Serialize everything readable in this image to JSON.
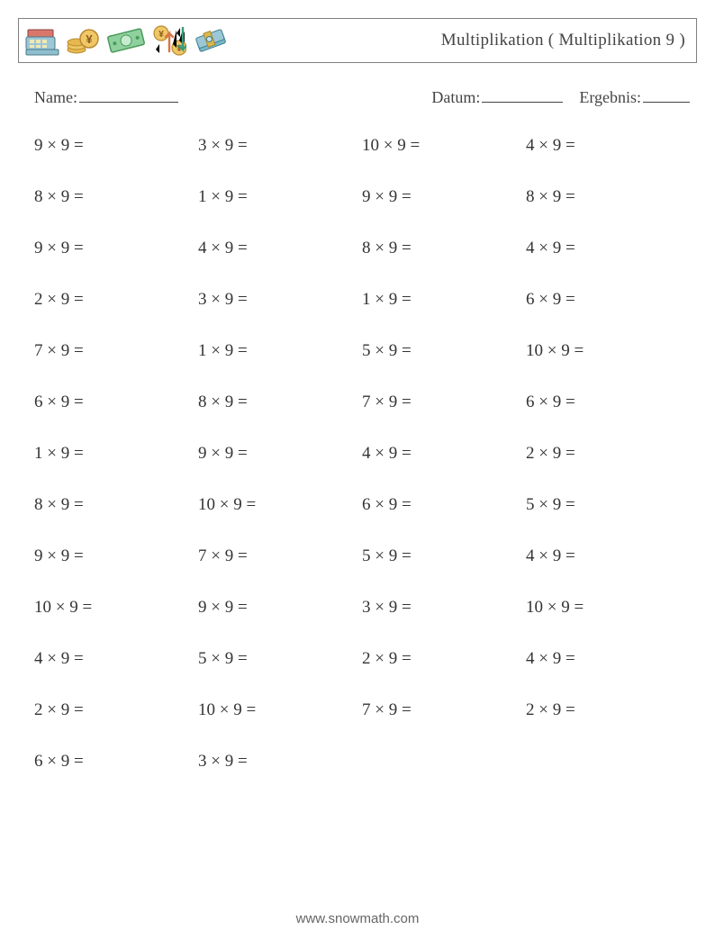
{
  "title": "Multiplikation ( Multiplikation 9 )",
  "meta": {
    "name_label": "Name:",
    "date_label": "Datum:",
    "result_label": "Ergebnis:"
  },
  "layout": {
    "columns": 4,
    "rows": 13,
    "operator": "×",
    "suffix": " ="
  },
  "colors": {
    "text": "#333333",
    "border": "#808080",
    "background": "#ffffff",
    "footer": "#666666"
  },
  "problems": [
    {
      "a": 9,
      "b": 9
    },
    {
      "a": 3,
      "b": 9
    },
    {
      "a": 10,
      "b": 9
    },
    {
      "a": 4,
      "b": 9
    },
    {
      "a": 8,
      "b": 9
    },
    {
      "a": 1,
      "b": 9
    },
    {
      "a": 9,
      "b": 9
    },
    {
      "a": 8,
      "b": 9
    },
    {
      "a": 9,
      "b": 9
    },
    {
      "a": 4,
      "b": 9
    },
    {
      "a": 8,
      "b": 9
    },
    {
      "a": 4,
      "b": 9
    },
    {
      "a": 2,
      "b": 9
    },
    {
      "a": 3,
      "b": 9
    },
    {
      "a": 1,
      "b": 9
    },
    {
      "a": 6,
      "b": 9
    },
    {
      "a": 7,
      "b": 9
    },
    {
      "a": 1,
      "b": 9
    },
    {
      "a": 5,
      "b": 9
    },
    {
      "a": 10,
      "b": 9
    },
    {
      "a": 6,
      "b": 9
    },
    {
      "a": 8,
      "b": 9
    },
    {
      "a": 7,
      "b": 9
    },
    {
      "a": 6,
      "b": 9
    },
    {
      "a": 1,
      "b": 9
    },
    {
      "a": 9,
      "b": 9
    },
    {
      "a": 4,
      "b": 9
    },
    {
      "a": 2,
      "b": 9
    },
    {
      "a": 8,
      "b": 9
    },
    {
      "a": 10,
      "b": 9
    },
    {
      "a": 6,
      "b": 9
    },
    {
      "a": 5,
      "b": 9
    },
    {
      "a": 9,
      "b": 9
    },
    {
      "a": 7,
      "b": 9
    },
    {
      "a": 5,
      "b": 9
    },
    {
      "a": 4,
      "b": 9
    },
    {
      "a": 10,
      "b": 9
    },
    {
      "a": 9,
      "b": 9
    },
    {
      "a": 3,
      "b": 9
    },
    {
      "a": 10,
      "b": 9
    },
    {
      "a": 4,
      "b": 9
    },
    {
      "a": 5,
      "b": 9
    },
    {
      "a": 2,
      "b": 9
    },
    {
      "a": 4,
      "b": 9
    },
    {
      "a": 2,
      "b": 9
    },
    {
      "a": 10,
      "b": 9
    },
    {
      "a": 7,
      "b": 9
    },
    {
      "a": 2,
      "b": 9
    },
    {
      "a": 6,
      "b": 9
    },
    {
      "a": 3,
      "b": 9
    }
  ],
  "footer": "www.snowmath.com"
}
